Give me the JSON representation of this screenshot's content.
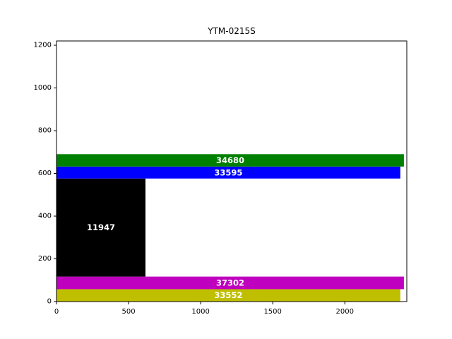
{
  "chart_data": {
    "type": "bar",
    "orientation": "rectangles",
    "title": "YTM-0215S",
    "xlabel": "",
    "ylabel": "",
    "xlim": [
      0,
      2430
    ],
    "ylim": [
      0,
      1220
    ],
    "xticks": [
      0,
      500,
      1000,
      1500,
      2000
    ],
    "yticks": [
      0,
      200,
      400,
      600,
      800,
      1000,
      1200
    ],
    "grid": false,
    "legend": "none",
    "rects": [
      {
        "label": "33552",
        "x0": 0,
        "x1": 2385,
        "y0": 0,
        "y1": 58,
        "color": "#bfbf00"
      },
      {
        "label": "37302",
        "x0": 0,
        "x1": 2410,
        "y0": 58,
        "y1": 117,
        "color": "#bf00bf"
      },
      {
        "label": "11947",
        "x0": 0,
        "x1": 617,
        "y0": 117,
        "y1": 576,
        "color": "#000000"
      },
      {
        "label": "33595",
        "x0": 0,
        "x1": 2385,
        "y0": 576,
        "y1": 632,
        "color": "#0000ff"
      },
      {
        "label": "34680",
        "x0": 0,
        "x1": 2410,
        "y0": 632,
        "y1": 690,
        "color": "#008000"
      }
    ]
  }
}
